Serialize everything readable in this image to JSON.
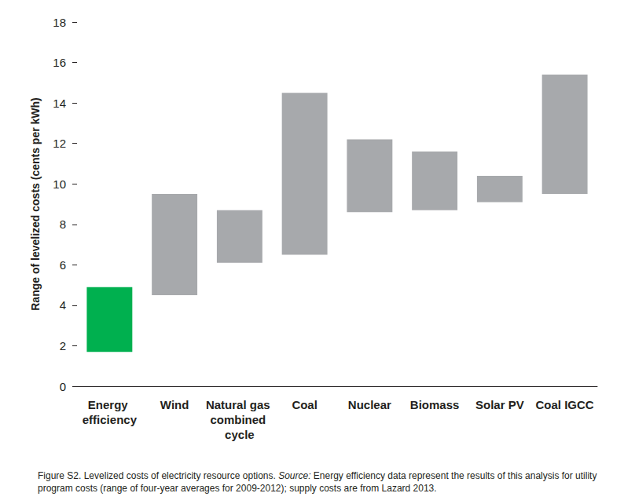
{
  "chart_data": {
    "type": "range_bar",
    "y_label": "Range of levelized costs (cents per kWh)",
    "categories": [
      "Energy efficiency",
      "Wind",
      "Natural gas combined cycle",
      "Coal",
      "Nuclear",
      "Biomass",
      "Solar PV",
      "Coal IGCC"
    ],
    "low": [
      1.7,
      4.5,
      6.1,
      6.5,
      8.6,
      8.7,
      9.1,
      9.5
    ],
    "high": [
      4.9,
      9.5,
      8.7,
      14.5,
      12.2,
      11.6,
      10.4,
      15.4
    ],
    "colors": [
      "#00b04f",
      "#a7a9ac",
      "#a7a9ac",
      "#a7a9ac",
      "#a7a9ac",
      "#a7a9ac",
      "#a7a9ac",
      "#a7a9ac"
    ],
    "ylim": [
      0,
      18
    ],
    "yticks": [
      0,
      2,
      4,
      6,
      8,
      10,
      12,
      14,
      16,
      18
    ],
    "grid": false
  },
  "caption": {
    "figure": "Figure S2. Levelized costs of electricity resource options.",
    "source_label": "Source:",
    "source_text": "Energy efficiency data represent the results of this analysis for utility program costs (range of four-year averages for 2009-2012); supply costs are from Lazard 2013."
  }
}
